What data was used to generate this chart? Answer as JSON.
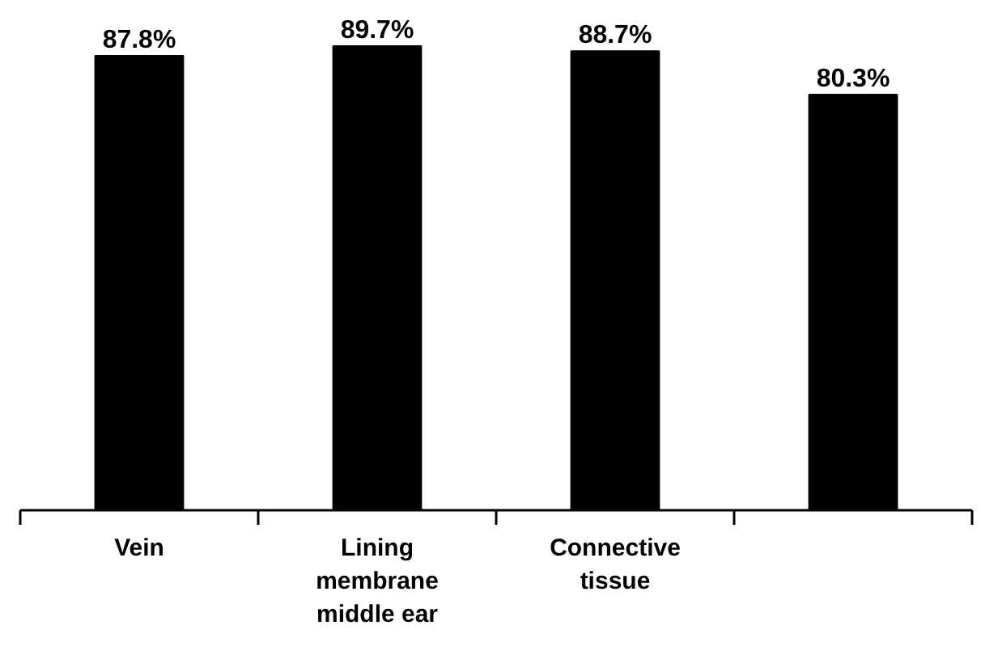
{
  "chart_data": {
    "type": "bar",
    "categories": [
      "Vein",
      "Lining\nmembrane\nmiddle ear",
      "Connective\ntissue",
      null
    ],
    "values": [
      87.8,
      89.7,
      88.7,
      80.3
    ],
    "value_labels": [
      "87.8%",
      "89.7%",
      "88.7%",
      "80.3%"
    ],
    "color": "#000000",
    "grid": false
  }
}
